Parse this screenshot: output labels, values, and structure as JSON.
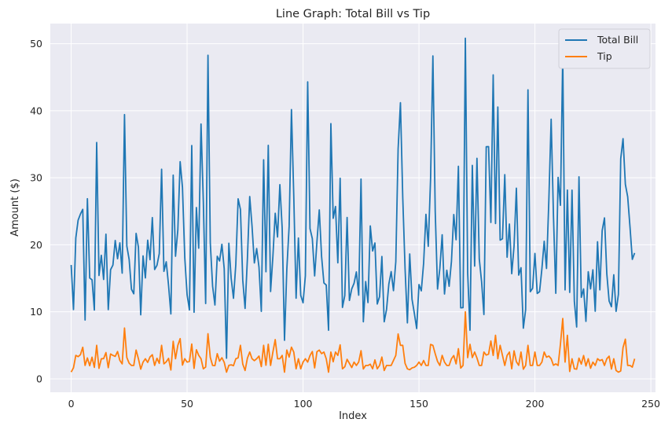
{
  "chart_data": {
    "type": "line",
    "title": "Line Graph: Total Bill vs Tip",
    "xlabel": "Index",
    "ylabel": "Amount ($)",
    "xlim": [
      -9,
      252
    ],
    "ylim": [
      -2,
      53
    ],
    "xticks": [
      0,
      50,
      100,
      150,
      200,
      250
    ],
    "yticks": [
      0,
      10,
      20,
      30,
      40,
      50
    ],
    "grid": true,
    "legend": "top-right",
    "series": [
      {
        "name": "Total Bill",
        "color": "#1f77b4",
        "values": [
          16.99,
          10.34,
          21.01,
          23.68,
          24.59,
          25.29,
          8.77,
          26.88,
          15.04,
          14.78,
          10.27,
          35.26,
          15.42,
          18.43,
          14.83,
          21.58,
          10.33,
          16.29,
          16.97,
          20.65,
          17.92,
          20.29,
          15.77,
          39.42,
          19.82,
          17.81,
          13.37,
          12.69,
          21.7,
          19.65,
          9.55,
          18.35,
          15.06,
          20.69,
          17.78,
          24.06,
          16.31,
          16.93,
          18.69,
          31.27,
          16.04,
          17.46,
          13.94,
          9.68,
          30.4,
          18.29,
          22.23,
          32.4,
          28.55,
          18.04,
          12.54,
          10.29,
          34.81,
          9.94,
          25.56,
          19.49,
          38.01,
          26.41,
          11.24,
          48.27,
          20.29,
          13.81,
          11.02,
          18.29,
          17.59,
          20.08,
          16.45,
          3.07,
          20.23,
          15.01,
          12.02,
          17.07,
          26.86,
          25.28,
          14.73,
          10.51,
          17.92,
          27.2,
          22.76,
          17.29,
          19.44,
          16.66,
          10.07,
          32.68,
          15.98,
          34.83,
          13.03,
          18.28,
          24.71,
          21.16,
          28.97,
          22.49,
          5.75,
          16.32,
          22.75,
          40.17,
          27.28,
          12.03,
          21.01,
          12.46,
          11.35,
          15.38,
          44.3,
          22.42,
          20.92,
          15.36,
          20.49,
          25.21,
          18.24,
          14.31,
          14.0,
          7.25,
          38.07,
          23.95,
          25.71,
          17.31,
          29.93,
          10.65,
          12.43,
          24.08,
          11.69,
          13.42,
          14.26,
          15.95,
          12.48,
          29.8,
          8.52,
          14.52,
          11.38,
          22.82,
          19.08,
          20.27,
          11.17,
          12.26,
          18.26,
          8.51,
          10.33,
          14.15,
          16.0,
          13.16,
          17.47,
          34.3,
          41.19,
          27.05,
          16.43,
          8.35,
          18.64,
          11.87,
          9.78,
          7.51,
          14.07,
          13.13,
          17.26,
          24.55,
          19.77,
          29.85,
          48.17,
          25.0,
          13.39,
          16.49,
          21.5,
          12.66,
          16.21,
          13.81,
          17.51,
          24.52,
          20.76,
          31.71,
          10.59,
          10.63,
          50.81,
          15.81,
          7.25,
          31.85,
          16.82,
          32.9,
          17.89,
          14.48,
          9.6,
          34.63,
          34.65,
          23.33,
          45.35,
          23.17,
          40.55,
          20.69,
          20.9,
          30.46,
          18.15,
          23.1,
          15.69,
          19.81,
          28.44,
          15.48,
          16.58,
          7.56,
          10.34,
          43.11,
          13.0,
          13.51,
          18.71,
          12.74,
          13.0,
          16.4,
          20.53,
          16.47,
          26.59,
          38.73,
          24.27,
          12.76,
          30.06,
          25.89,
          48.33,
          13.27,
          28.17,
          12.9,
          28.15,
          11.59,
          7.74,
          30.14,
          12.16,
          13.42,
          8.58,
          15.98,
          13.42,
          16.27,
          10.09,
          20.45,
          13.28,
          22.12,
          24.01,
          15.69,
          11.61,
          10.77,
          15.53,
          10.07,
          12.6,
          32.83,
          35.83,
          29.03,
          27.18,
          22.67,
          17.82,
          18.78
        ]
      },
      {
        "name": "Tip",
        "color": "#ff7f0e",
        "values": [
          1.01,
          1.66,
          3.5,
          3.31,
          3.61,
          4.71,
          2.0,
          3.12,
          1.96,
          3.23,
          1.71,
          5.0,
          1.57,
          3.0,
          3.02,
          3.92,
          1.67,
          3.71,
          3.5,
          3.35,
          4.08,
          2.75,
          2.23,
          7.58,
          3.18,
          2.34,
          2.0,
          2.0,
          4.3,
          3.0,
          1.45,
          2.5,
          3.0,
          2.45,
          3.27,
          3.6,
          2.0,
          3.07,
          2.31,
          5.0,
          2.24,
          2.54,
          3.06,
          1.32,
          5.6,
          3.0,
          5.0,
          6.0,
          2.05,
          3.0,
          2.5,
          2.6,
          5.2,
          1.56,
          4.34,
          3.51,
          3.0,
          1.5,
          1.76,
          6.73,
          3.21,
          2.0,
          1.98,
          3.76,
          2.64,
          3.15,
          2.47,
          1.0,
          2.01,
          2.09,
          1.97,
          3.0,
          3.14,
          5.0,
          2.2,
          1.25,
          3.08,
          4.0,
          3.0,
          2.71,
          3.0,
          3.4,
          1.83,
          5.0,
          2.03,
          5.17,
          2.0,
          4.0,
          5.85,
          3.0,
          3.0,
          3.5,
          1.0,
          4.3,
          3.25,
          4.73,
          4.0,
          1.5,
          3.0,
          1.5,
          2.5,
          3.0,
          2.5,
          3.48,
          4.08,
          1.64,
          4.06,
          4.29,
          3.76,
          4.0,
          3.0,
          1.0,
          4.0,
          2.55,
          4.0,
          3.5,
          5.07,
          1.5,
          1.8,
          2.92,
          2.31,
          1.68,
          2.5,
          2.0,
          2.52,
          4.2,
          1.48,
          2.0,
          2.0,
          2.18,
          1.5,
          2.83,
          1.5,
          2.0,
          3.25,
          1.25,
          2.0,
          2.0,
          2.0,
          2.75,
          3.5,
          6.7,
          5.0,
          5.0,
          2.3,
          1.5,
          1.36,
          1.63,
          1.73,
          2.0,
          2.5,
          2.0,
          2.74,
          2.0,
          2.0,
          5.14,
          5.0,
          3.75,
          2.61,
          2.0,
          3.5,
          2.5,
          2.0,
          2.0,
          3.0,
          3.48,
          2.24,
          4.5,
          1.61,
          2.0,
          10.0,
          3.16,
          5.15,
          3.18,
          4.0,
          3.11,
          2.0,
          2.0,
          4.0,
          3.55,
          3.68,
          5.65,
          3.5,
          6.5,
          3.0,
          5.0,
          3.5,
          2.0,
          3.5,
          4.0,
          1.5,
          4.19,
          2.56,
          2.02,
          4.0,
          1.44,
          2.0,
          5.0,
          2.0,
          2.0,
          4.0,
          2.01,
          2.0,
          2.5,
          4.0,
          3.23,
          3.41,
          3.0,
          2.03,
          2.23,
          2.0,
          5.16,
          9.0,
          2.5,
          6.5,
          1.1,
          3.0,
          1.5,
          1.44,
          3.09,
          2.2,
          3.48,
          1.92,
          3.0,
          1.58,
          2.5,
          2.0,
          3.0,
          2.72,
          2.88,
          2.0,
          3.0,
          3.39,
          1.47,
          3.0,
          1.25,
          1.0,
          1.17,
          4.67,
          5.92,
          2.0,
          2.0,
          1.75,
          3.0
        ]
      }
    ]
  }
}
